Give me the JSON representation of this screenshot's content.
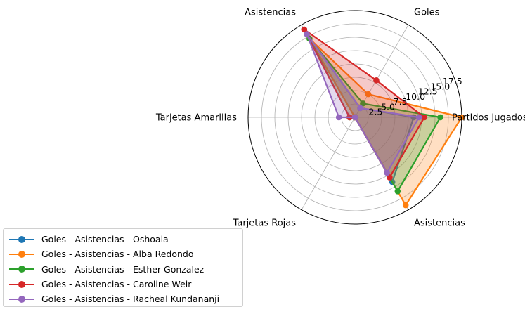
{
  "chart_data": {
    "type": "radar",
    "axes": [
      "Partidos Jugados",
      "Goles",
      "Asistencias",
      "Tarjetas Amarillas",
      "Tarjetas Rojas",
      "Asistencias"
    ],
    "axis_labels": [
      "Partidos Jugados",
      "Goles",
      "Asistencias",
      "Tarjetas Amarillas",
      "Tarjetas Rojas"
    ],
    "radial_ticks": [
      "2.5",
      "5.0",
      "7.5",
      "10.0",
      "12.5",
      "15.0",
      "17.5"
    ],
    "radial_tick_values": [
      2.5,
      5.0,
      7.5,
      10.0,
      12.5,
      15.0,
      17.5
    ],
    "rlim": [
      0,
      20
    ],
    "grid": true,
    "legend_position": "lower-left",
    "series": [
      {
        "name": "Goles - Asistencias - Oshoala",
        "color": "#1f77b4",
        "values": [
          11,
          2,
          18,
          0,
          0,
          14
        ]
      },
      {
        "name": "Goles - Asistencias - Alba Redondo",
        "color": "#ff7f0e",
        "values": [
          20,
          5,
          17,
          0,
          0,
          19
        ]
      },
      {
        "name": "Goles - Asistencias - Esther Gonzalez",
        "color": "#2ca02c",
        "values": [
          16,
          3,
          17,
          1,
          0,
          16
        ]
      },
      {
        "name": "Goles - Asistencias - Caroline Weir",
        "color": "#d62728",
        "values": [
          13,
          8,
          19,
          1,
          0,
          13
        ]
      },
      {
        "name": "Goles - Asistencias - Racheal Kundananji",
        "color": "#9467bd",
        "values": [
          12,
          2,
          18,
          3,
          0,
          12
        ]
      }
    ]
  }
}
